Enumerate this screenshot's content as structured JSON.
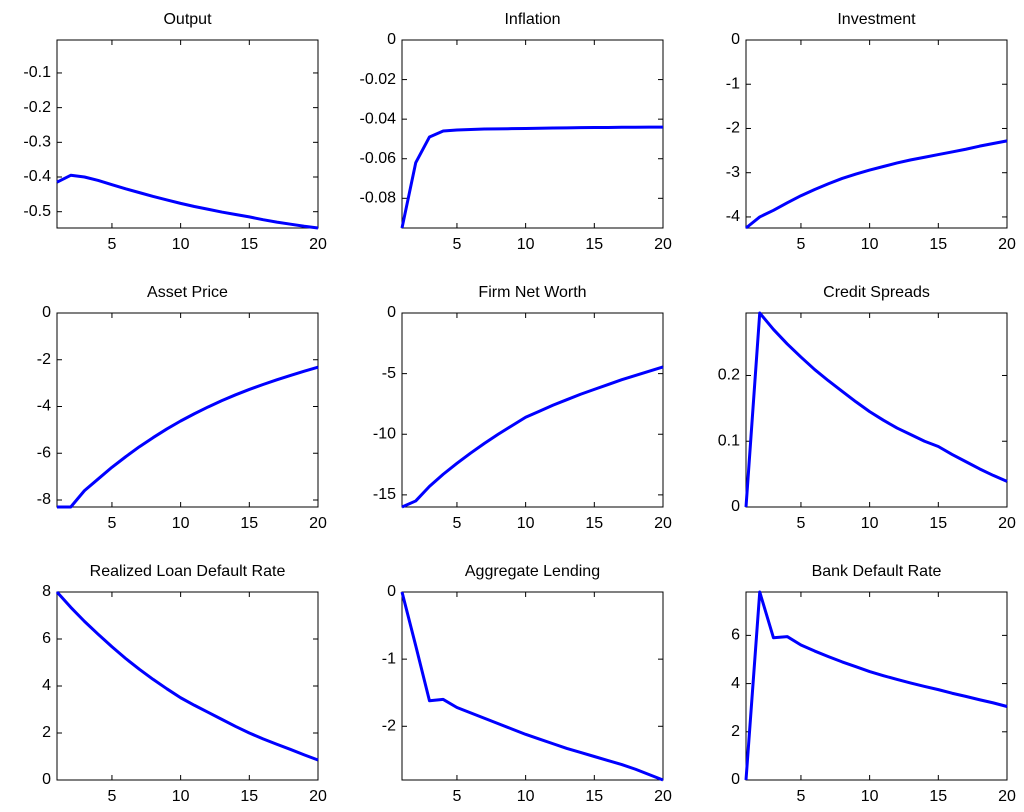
{
  "chart_data": [
    {
      "type": "line",
      "title": "Output",
      "x": [
        1,
        2,
        3,
        4,
        5,
        6,
        7,
        8,
        9,
        10,
        11,
        12,
        13,
        14,
        15,
        16,
        17,
        18,
        19,
        20
      ],
      "xlim": [
        1,
        20
      ],
      "xticks": [
        5,
        10,
        15,
        20
      ],
      "ylim": [
        -0.547,
        -0.005
      ],
      "yticks": [
        -0.5,
        -0.4,
        -0.3,
        -0.2,
        -0.1
      ],
      "series": [
        {
          "color": "#0000ff",
          "values": [
            -0.415,
            -0.395,
            -0.4,
            -0.41,
            -0.422,
            -0.434,
            -0.445,
            -0.456,
            -0.466,
            -0.476,
            -0.485,
            -0.493,
            -0.501,
            -0.508,
            -0.515,
            -0.523,
            -0.53,
            -0.536,
            -0.542,
            -0.547
          ]
        }
      ]
    },
    {
      "type": "line",
      "title": "Inflation",
      "x": [
        1,
        2,
        3,
        4,
        5,
        6,
        7,
        8,
        9,
        10,
        11,
        12,
        13,
        14,
        15,
        16,
        17,
        18,
        19,
        20
      ],
      "xlim": [
        1,
        20
      ],
      "xticks": [
        5,
        10,
        15,
        20
      ],
      "ylim": [
        -0.095,
        0
      ],
      "yticks": [
        -0.08,
        -0.06,
        -0.04,
        -0.02,
        0
      ],
      "series": [
        {
          "color": "#0000ff",
          "values": [
            -0.095,
            -0.062,
            -0.049,
            -0.046,
            -0.0455,
            -0.0452,
            -0.045,
            -0.0449,
            -0.0448,
            -0.0447,
            -0.0446,
            -0.0445,
            -0.0444,
            -0.0443,
            -0.0442,
            -0.0442,
            -0.0441,
            -0.0441,
            -0.044,
            -0.044
          ]
        }
      ]
    },
    {
      "type": "line",
      "title": "Investment",
      "x": [
        1,
        2,
        3,
        4,
        5,
        6,
        7,
        8,
        9,
        10,
        11,
        12,
        13,
        14,
        15,
        16,
        17,
        18,
        19,
        20
      ],
      "xlim": [
        1,
        20
      ],
      "xticks": [
        5,
        10,
        15,
        20
      ],
      "ylim": [
        -4.25,
        0
      ],
      "yticks": [
        -4,
        -3,
        -2,
        -1,
        0
      ],
      "series": [
        {
          "color": "#0000ff",
          "values": [
            -4.25,
            -4.0,
            -3.85,
            -3.68,
            -3.52,
            -3.38,
            -3.25,
            -3.13,
            -3.03,
            -2.94,
            -2.86,
            -2.78,
            -2.71,
            -2.65,
            -2.59,
            -2.53,
            -2.47,
            -2.4,
            -2.34,
            -2.28
          ]
        }
      ]
    },
    {
      "type": "line",
      "title": "Asset Price",
      "x": [
        1,
        2,
        3,
        4,
        5,
        6,
        7,
        8,
        9,
        10,
        11,
        12,
        13,
        14,
        15,
        16,
        17,
        18,
        19,
        20
      ],
      "xlim": [
        1,
        20
      ],
      "xticks": [
        5,
        10,
        15,
        20
      ],
      "ylim": [
        -8.3,
        0
      ],
      "yticks": [
        -8,
        -6,
        -4,
        -2,
        0
      ],
      "series": [
        {
          "color": "#0000ff",
          "values": [
            -8.3,
            -8.3,
            -7.6,
            -7.1,
            -6.6,
            -6.15,
            -5.72,
            -5.33,
            -4.96,
            -4.62,
            -4.31,
            -4.02,
            -3.75,
            -3.5,
            -3.27,
            -3.06,
            -2.86,
            -2.67,
            -2.49,
            -2.32
          ]
        }
      ]
    },
    {
      "type": "line",
      "title": "Firm Net Worth",
      "x": [
        1,
        2,
        3,
        4,
        5,
        6,
        7,
        8,
        9,
        10,
        11,
        12,
        13,
        14,
        15,
        16,
        17,
        18,
        19,
        20
      ],
      "xlim": [
        1,
        20
      ],
      "xticks": [
        5,
        10,
        15,
        20
      ],
      "ylim": [
        -16,
        0
      ],
      "yticks": [
        -15,
        -10,
        -5,
        0
      ],
      "series": [
        {
          "color": "#0000ff",
          "values": [
            -16,
            -15.5,
            -14.3,
            -13.3,
            -12.4,
            -11.55,
            -10.75,
            -10.0,
            -9.3,
            -8.6,
            -8.1,
            -7.6,
            -7.15,
            -6.7,
            -6.3,
            -5.9,
            -5.5,
            -5.15,
            -4.8,
            -4.45
          ]
        }
      ]
    },
    {
      "type": "line",
      "title": "Credit Spreads",
      "x": [
        1,
        2,
        3,
        4,
        5,
        6,
        7,
        8,
        9,
        10,
        11,
        12,
        13,
        14,
        15,
        16,
        17,
        18,
        19,
        20
      ],
      "xlim": [
        1,
        20
      ],
      "xticks": [
        5,
        10,
        15,
        20
      ],
      "ylim": [
        0,
        0.295
      ],
      "yticks": [
        0,
        0.1,
        0.2
      ],
      "series": [
        {
          "color": "#0000ff",
          "values": [
            0,
            0.295,
            0.27,
            0.248,
            0.228,
            0.209,
            0.192,
            0.176,
            0.16,
            0.145,
            0.132,
            0.12,
            0.11,
            0.1,
            0.092,
            0.08,
            0.069,
            0.058,
            0.048,
            0.039
          ]
        }
      ]
    },
    {
      "type": "line",
      "title": "Realized Loan Default Rate",
      "x": [
        1,
        2,
        3,
        4,
        5,
        6,
        7,
        8,
        9,
        10,
        11,
        12,
        13,
        14,
        15,
        16,
        17,
        18,
        19,
        20
      ],
      "xlim": [
        1,
        20
      ],
      "xticks": [
        5,
        10,
        15,
        20
      ],
      "ylim": [
        0,
        8
      ],
      "yticks": [
        0,
        2,
        4,
        6,
        8
      ],
      "series": [
        {
          "color": "#0000ff",
          "values": [
            8,
            7.35,
            6.75,
            6.2,
            5.67,
            5.17,
            4.71,
            4.28,
            3.88,
            3.5,
            3.18,
            2.88,
            2.58,
            2.28,
            2.0,
            1.75,
            1.52,
            1.3,
            1.07,
            0.85
          ]
        }
      ]
    },
    {
      "type": "line",
      "title": "Aggregate Lending",
      "x": [
        1,
        2,
        3,
        4,
        5,
        6,
        7,
        8,
        9,
        10,
        11,
        12,
        13,
        14,
        15,
        16,
        17,
        18,
        19,
        20
      ],
      "xlim": [
        1,
        20
      ],
      "xticks": [
        5,
        10,
        15,
        20
      ],
      "ylim": [
        -2.8,
        0
      ],
      "yticks": [
        -2,
        -1,
        0
      ],
      "series": [
        {
          "color": "#0000ff",
          "values": [
            0,
            -0.8,
            -1.62,
            -1.6,
            -1.72,
            -1.8,
            -1.88,
            -1.96,
            -2.04,
            -2.12,
            -2.19,
            -2.26,
            -2.33,
            -2.39,
            -2.45,
            -2.51,
            -2.57,
            -2.64,
            -2.72,
            -2.8
          ]
        }
      ]
    },
    {
      "type": "line",
      "title": "Bank Default Rate",
      "x": [
        1,
        2,
        3,
        4,
        5,
        6,
        7,
        8,
        9,
        10,
        11,
        12,
        13,
        14,
        15,
        16,
        17,
        18,
        19,
        20
      ],
      "xlim": [
        1,
        20
      ],
      "xticks": [
        5,
        10,
        15,
        20
      ],
      "ylim": [
        0,
        7.8
      ],
      "yticks": [
        0,
        2,
        4,
        6
      ],
      "series": [
        {
          "color": "#0000ff",
          "values": [
            0,
            7.8,
            5.9,
            5.95,
            5.6,
            5.35,
            5.12,
            4.9,
            4.7,
            4.5,
            4.33,
            4.17,
            4.02,
            3.88,
            3.75,
            3.6,
            3.47,
            3.33,
            3.2,
            3.05
          ]
        }
      ]
    }
  ]
}
